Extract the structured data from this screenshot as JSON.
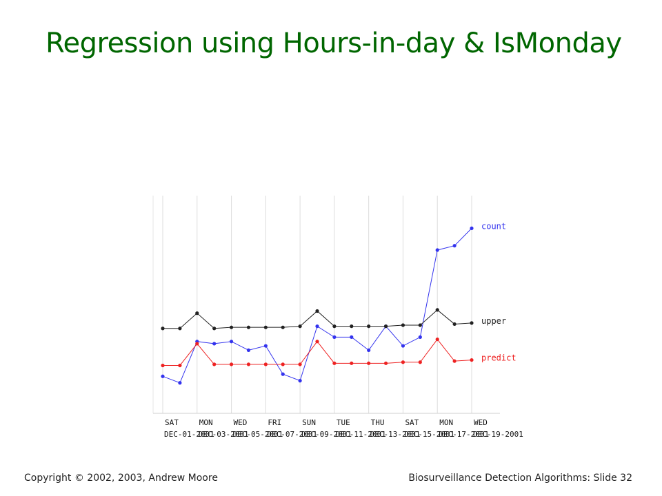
{
  "slide": {
    "title": "Regression using Hours-in-day & IsMonday",
    "footer_left": "Copyright © 2002, 2003, Andrew  Moore",
    "footer_right": "Biosurveillance Detection Algorithms: Slide 32"
  },
  "chart_data": {
    "type": "line",
    "title": "",
    "xlabel": "",
    "ylabel": "",
    "grid": true,
    "legend": "inline-right",
    "day_labels": [
      "SAT",
      "MON",
      "WED",
      "FRI",
      "SUN",
      "TUE",
      "THU",
      "SAT",
      "MON",
      "WED"
    ],
    "date_labels": [
      "DEC-01-2001",
      "DEC-03-2001",
      "DEC-05-2001",
      "DEC-07-2001",
      "DEC-09-2001",
      "DEC-11-2001",
      "DEC-13-2001",
      "DEC-15-2001",
      "DEC-17-2001",
      "DEC-19-2001"
    ],
    "x": [
      "DEC-01-2001",
      "DEC-02-2001",
      "DEC-03-2001",
      "DEC-04-2001",
      "DEC-05-2001",
      "DEC-06-2001",
      "DEC-07-2001",
      "DEC-08-2001",
      "DEC-09-2001",
      "DEC-10-2001",
      "DEC-11-2001",
      "DEC-12-2001",
      "DEC-13-2001",
      "DEC-14-2001",
      "DEC-15-2001",
      "DEC-16-2001",
      "DEC-17-2001",
      "DEC-18-2001",
      "DEC-19-2001"
    ],
    "series": [
      {
        "name": "count",
        "color": "#3333ee",
        "values": [
          17,
          14,
          33,
          32,
          33,
          29,
          31,
          18,
          15,
          40,
          35,
          35,
          29,
          40,
          31,
          35,
          75,
          77,
          85
        ]
      },
      {
        "name": "upper",
        "color": "#222222",
        "values": [
          39,
          39,
          46,
          39,
          39.5,
          39.5,
          39.5,
          39.5,
          40,
          47,
          40,
          40,
          40,
          40,
          40.5,
          40.5,
          47.5,
          41,
          41.5
        ]
      },
      {
        "name": "predict",
        "color": "#ee2222",
        "values": [
          22,
          22,
          32,
          22.5,
          22.5,
          22.5,
          22.5,
          22.5,
          22.5,
          33,
          23,
          23,
          23,
          23,
          23.5,
          23.5,
          34,
          24,
          24.5
        ]
      }
    ]
  }
}
